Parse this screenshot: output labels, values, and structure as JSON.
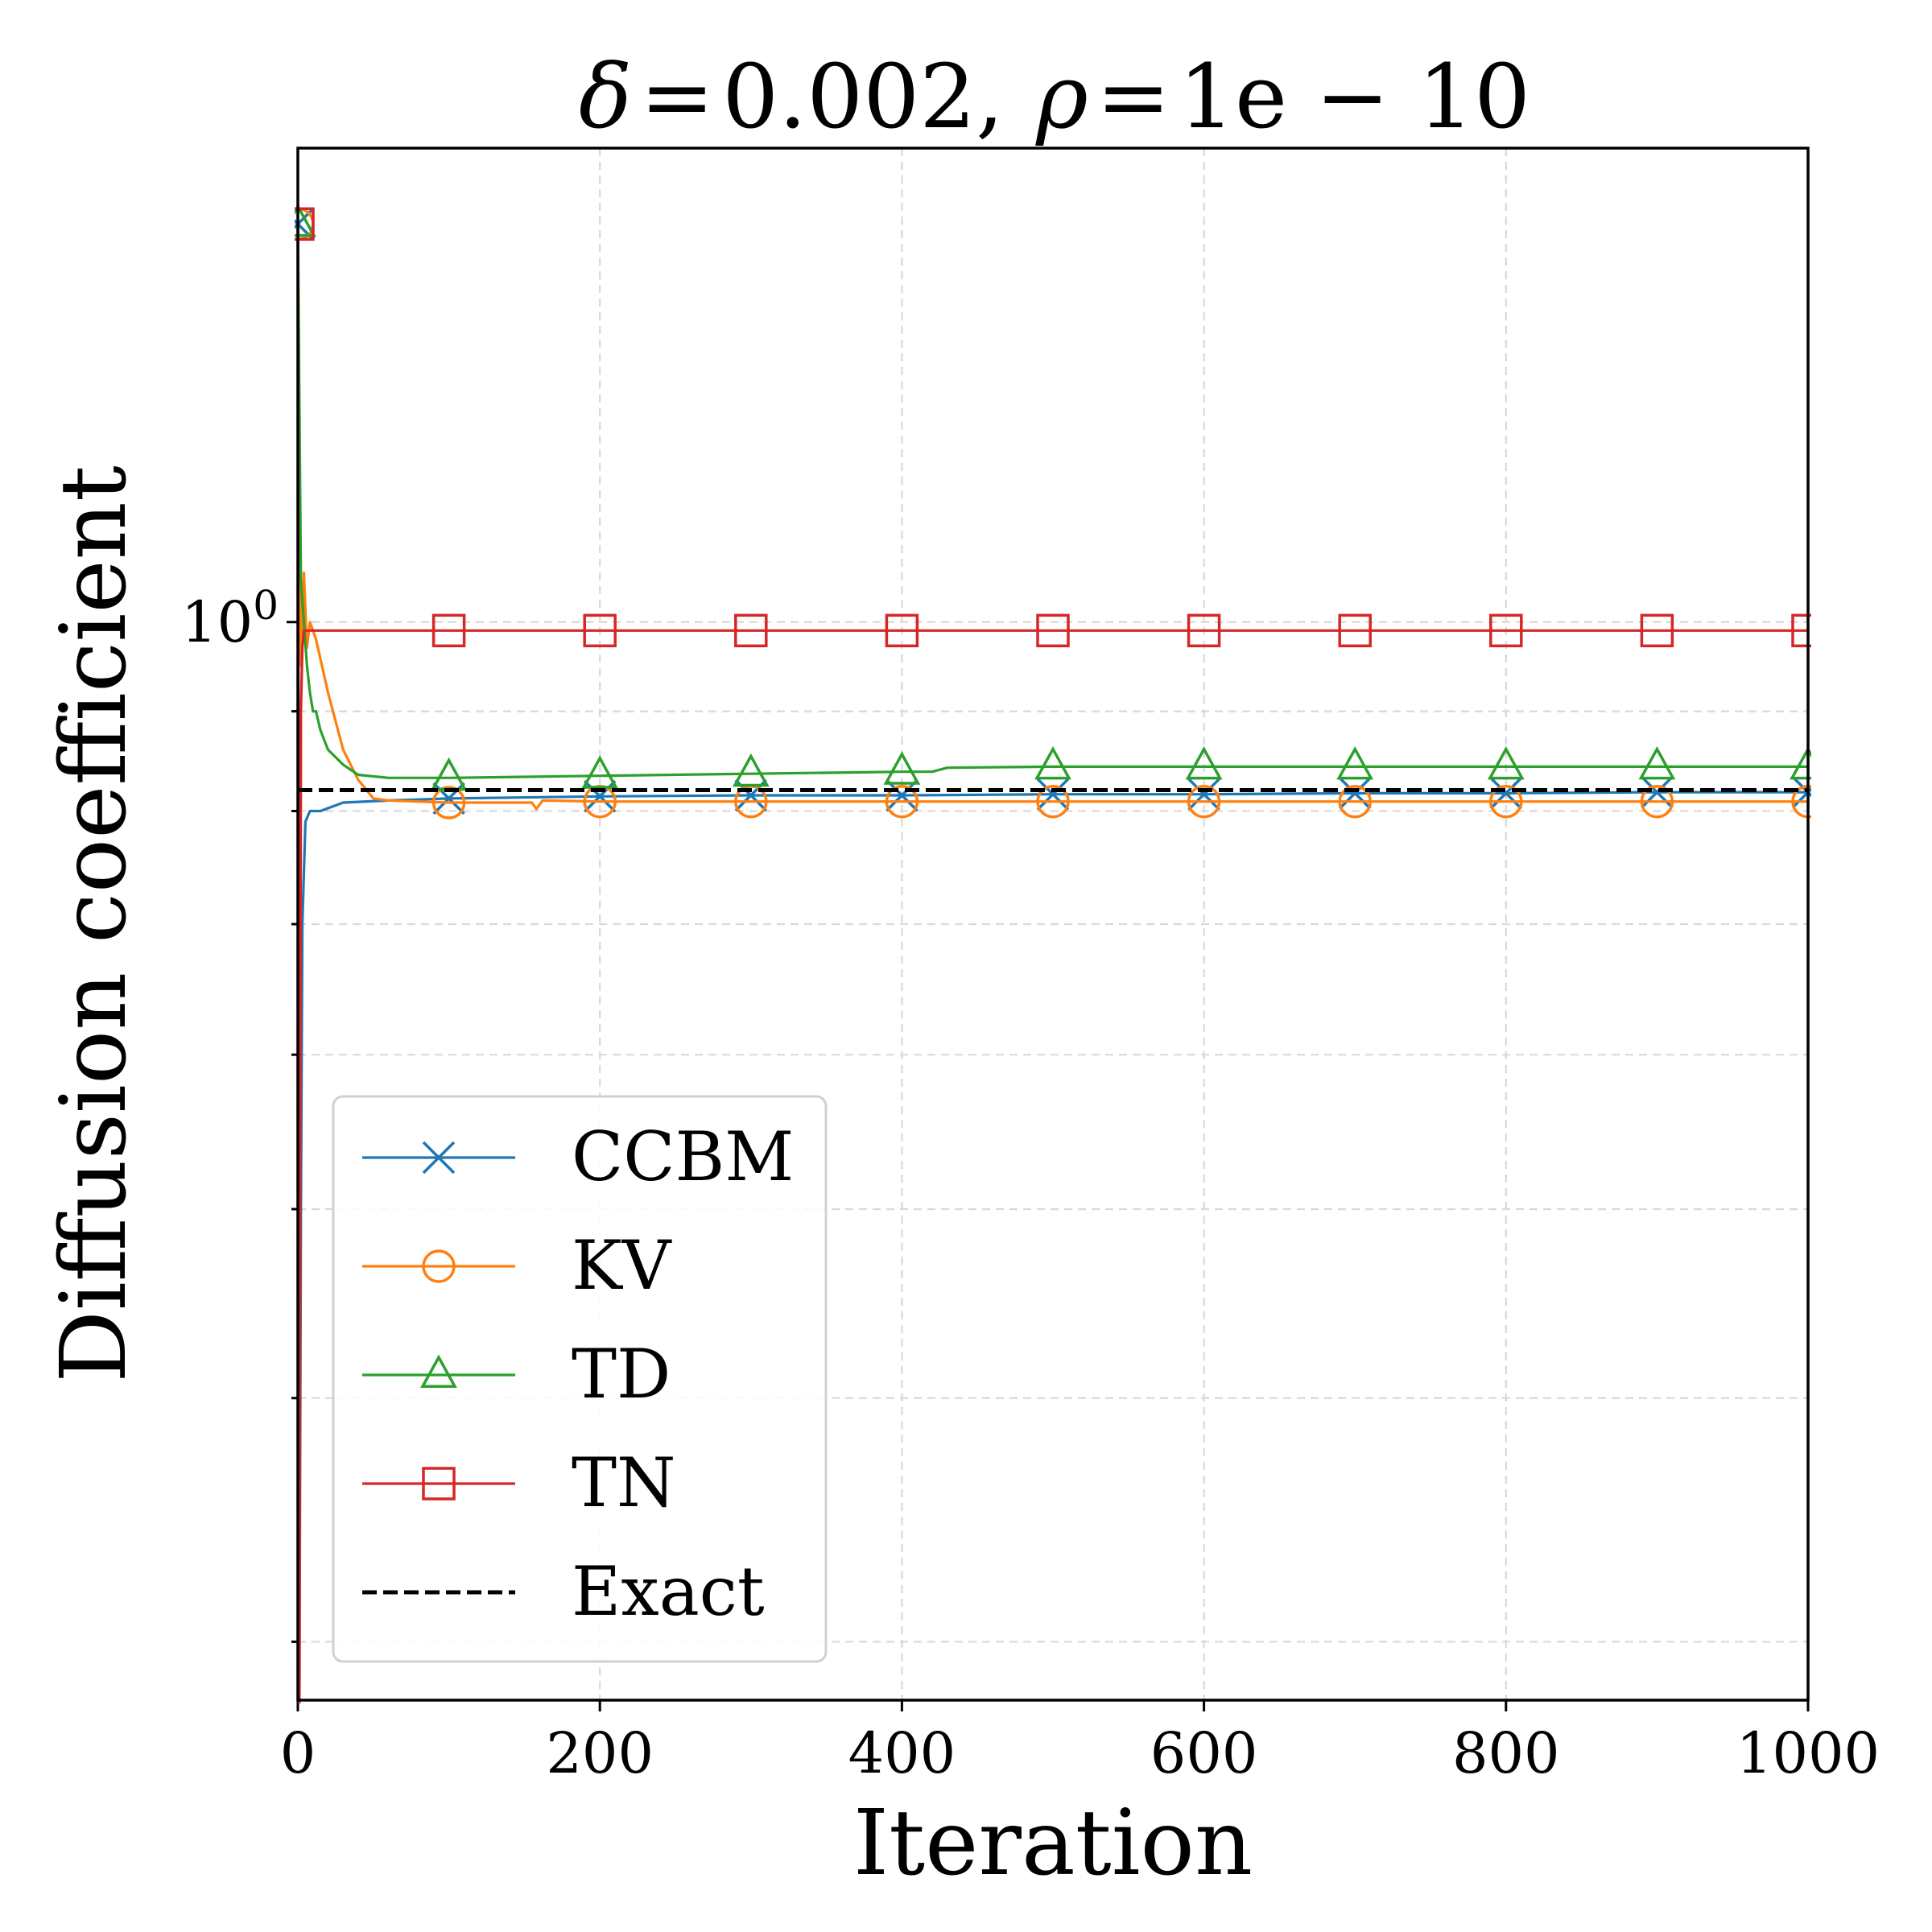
{
  "chart_data": {
    "type": "line",
    "title": "δ = 0.002,  ρ = 1e − 10",
    "title_parts": {
      "delta": "δ",
      "eq": "=",
      "delta_value": "0.002,",
      "rho": "ρ",
      "rho_value": "1e − 10"
    },
    "xlabel": "Iteration",
    "ylabel": "Diffusion coefficient",
    "xlim": [
      0,
      1000
    ],
    "ylim": [
      0.28,
      1.75
    ],
    "yscale": "log",
    "x_ticks": [
      0,
      200,
      400,
      600,
      800,
      1000
    ],
    "x_tick_labels": [
      "0",
      "200",
      "400",
      "600",
      "800",
      "1000"
    ],
    "y_major_tick": {
      "value": 1.0,
      "label_base": "10",
      "label_exp": "0"
    },
    "y_minor_ticks": [
      0.3,
      0.4,
      0.5,
      0.6,
      0.7,
      0.8,
      0.9
    ],
    "grid": true,
    "legend_position": "lower-left",
    "series": [
      {
        "name": "CCBM",
        "color": "#1f77b4",
        "marker": "x",
        "points": [
          [
            0,
            1.6
          ],
          [
            1,
            0.28
          ],
          [
            2,
            0.5
          ],
          [
            3,
            0.7
          ],
          [
            5,
            0.79
          ],
          [
            8,
            0.8
          ],
          [
            15,
            0.8
          ],
          [
            30,
            0.808
          ],
          [
            60,
            0.81
          ],
          [
            100,
            0.812
          ],
          [
            200,
            0.814
          ],
          [
            300,
            0.815
          ],
          [
            400,
            0.815
          ],
          [
            500,
            0.816
          ],
          [
            600,
            0.816
          ],
          [
            700,
            0.817
          ],
          [
            800,
            0.817
          ],
          [
            900,
            0.818
          ],
          [
            1000,
            0.818
          ]
        ],
        "marker_x": [
          0,
          100,
          200,
          300,
          400,
          500,
          600,
          700,
          800,
          900,
          1000
        ]
      },
      {
        "name": "KV",
        "color": "#ff7f0e",
        "marker": "o",
        "points": [
          [
            0,
            1.6
          ],
          [
            2,
            0.95
          ],
          [
            4,
            1.06
          ],
          [
            6,
            0.97
          ],
          [
            8,
            1.0
          ],
          [
            12,
            0.98
          ],
          [
            20,
            0.92
          ],
          [
            30,
            0.86
          ],
          [
            40,
            0.83
          ],
          [
            50,
            0.812
          ],
          [
            60,
            0.81
          ],
          [
            100,
            0.808
          ],
          [
            155,
            0.808
          ],
          [
            158,
            0.802
          ],
          [
            162,
            0.81
          ],
          [
            200,
            0.809
          ],
          [
            400,
            0.809
          ],
          [
            600,
            0.809
          ],
          [
            800,
            0.809
          ],
          [
            1000,
            0.809
          ]
        ],
        "marker_x": [
          0,
          100,
          200,
          300,
          400,
          500,
          600,
          700,
          800,
          900,
          1000
        ]
      },
      {
        "name": "TD",
        "color": "#2ca02c",
        "marker": "^",
        "points": [
          [
            0,
            1.6
          ],
          [
            2,
            1.05
          ],
          [
            4,
            1.0
          ],
          [
            6,
            0.95
          ],
          [
            8,
            0.92
          ],
          [
            10,
            0.9
          ],
          [
            12,
            0.9
          ],
          [
            15,
            0.88
          ],
          [
            20,
            0.86
          ],
          [
            30,
            0.845
          ],
          [
            40,
            0.835
          ],
          [
            60,
            0.832
          ],
          [
            100,
            0.832
          ],
          [
            200,
            0.834
          ],
          [
            300,
            0.836
          ],
          [
            400,
            0.838
          ],
          [
            420,
            0.838
          ],
          [
            430,
            0.842
          ],
          [
            500,
            0.843
          ],
          [
            700,
            0.843
          ],
          [
            1000,
            0.843
          ]
        ],
        "marker_x": [
          0,
          100,
          200,
          300,
          400,
          500,
          600,
          700,
          800,
          900,
          1000
        ]
      },
      {
        "name": "TN",
        "color": "#d62728",
        "marker": "s",
        "points": [
          [
            0,
            1.6
          ],
          [
            1,
            0.27
          ],
          [
            2,
            0.9
          ],
          [
            3,
            0.97
          ],
          [
            4,
            0.99
          ],
          [
            10,
            0.99
          ],
          [
            100,
            0.99
          ],
          [
            1000,
            0.99
          ]
        ],
        "marker_x": [
          0,
          100,
          200,
          300,
          400,
          500,
          600,
          700,
          800,
          900,
          1000
        ]
      },
      {
        "name": "Exact",
        "color": "#000000",
        "marker": "none",
        "linestyle": "dashed",
        "points": [
          [
            0,
            0.82
          ],
          [
            1000,
            0.82
          ]
        ],
        "marker_x": []
      }
    ]
  }
}
